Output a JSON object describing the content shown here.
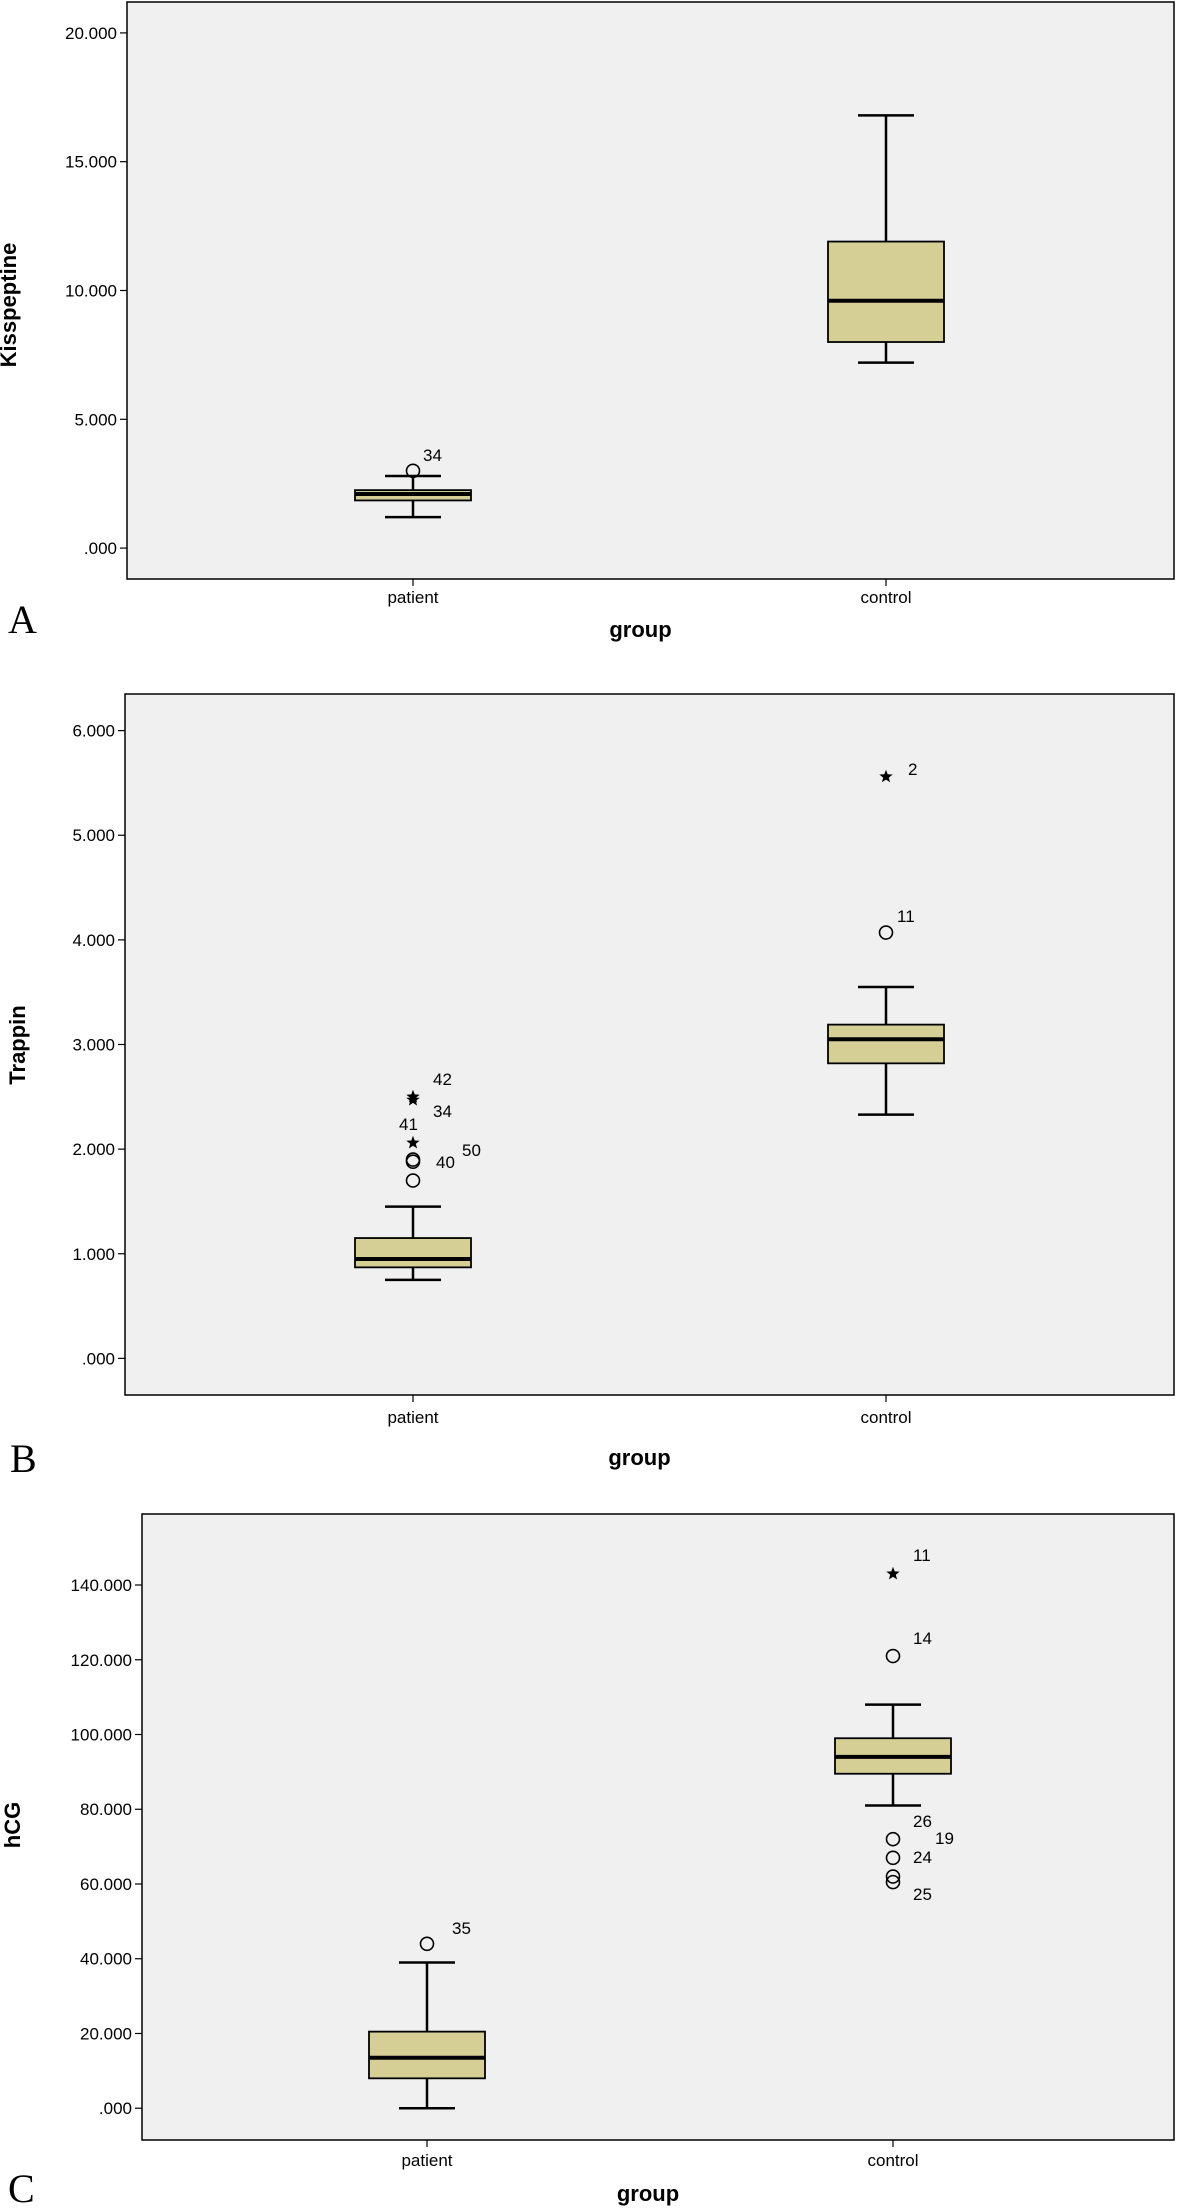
{
  "chart_data": [
    {
      "type": "box",
      "panel_label": "A",
      "xlabel": "group",
      "ylabel": "Kisspeptine",
      "ylim": [
        -1.2,
        21.2
      ],
      "yticks": [
        {
          "value": 0,
          "label": ".000"
        },
        {
          "value": 5,
          "label": "5.000"
        },
        {
          "value": 10,
          "label": "10.000"
        },
        {
          "value": 15,
          "label": "15.000"
        },
        {
          "value": 20,
          "label": "20.000"
        }
      ],
      "grid": false,
      "colors": {
        "box_fill": "#d5cf96",
        "plot_bg": "#f0f0f0"
      },
      "categories": [
        "patient",
        "control"
      ],
      "boxes": [
        {
          "category": "patient",
          "whisker_low": 1.2,
          "q1": 1.85,
          "median": 2.1,
          "q3": 2.25,
          "whisker_high": 2.8,
          "outliers": [
            {
              "value": 3.0,
              "marker": "circle",
              "label": "34"
            }
          ]
        },
        {
          "category": "control",
          "whisker_low": 7.2,
          "q1": 8.0,
          "median": 9.6,
          "q3": 11.9,
          "whisker_high": 16.8,
          "outliers": []
        }
      ]
    },
    {
      "type": "box",
      "panel_label": "B",
      "xlabel": "group",
      "ylabel": "Trappin",
      "ylim": [
        -0.35,
        6.35
      ],
      "yticks": [
        {
          "value": 0,
          "label": ".000"
        },
        {
          "value": 1,
          "label": "1.000"
        },
        {
          "value": 2,
          "label": "2.000"
        },
        {
          "value": 3,
          "label": "3.000"
        },
        {
          "value": 4,
          "label": "4.000"
        },
        {
          "value": 5,
          "label": "5.000"
        },
        {
          "value": 6,
          "label": "6.000"
        }
      ],
      "grid": false,
      "colors": {
        "box_fill": "#d5cf96",
        "plot_bg": "#f0f0f0"
      },
      "categories": [
        "patient",
        "control"
      ],
      "boxes": [
        {
          "category": "patient",
          "whisker_low": 0.75,
          "q1": 0.87,
          "median": 0.95,
          "q3": 1.15,
          "whisker_high": 1.45,
          "outliers": [
            {
              "value": 2.5,
              "marker": "star",
              "label": "42"
            },
            {
              "value": 2.47,
              "marker": "star",
              "label": "34"
            },
            {
              "value": 2.06,
              "marker": "star",
              "label": "41"
            },
            {
              "value": 1.9,
              "marker": "circle",
              "label": "50"
            },
            {
              "value": 1.88,
              "marker": "circle",
              "label": "40"
            },
            {
              "value": 1.7,
              "marker": "circle",
              "label": ""
            }
          ]
        },
        {
          "category": "control",
          "whisker_low": 2.33,
          "q1": 2.82,
          "median": 3.05,
          "q3": 3.19,
          "whisker_high": 3.55,
          "outliers": [
            {
              "value": 5.56,
              "marker": "star",
              "label": "2"
            },
            {
              "value": 4.07,
              "marker": "circle",
              "label": "11"
            }
          ]
        }
      ]
    },
    {
      "type": "box",
      "panel_label": "C",
      "xlabel": "group",
      "ylabel": "hCG",
      "ylim": [
        -8.5,
        159
      ],
      "yticks": [
        {
          "value": 0,
          "label": ".000"
        },
        {
          "value": 20,
          "label": "20.000"
        },
        {
          "value": 40,
          "label": "40.000"
        },
        {
          "value": 60,
          "label": "60.000"
        },
        {
          "value": 80,
          "label": "80.000"
        },
        {
          "value": 100,
          "label": "100.000"
        },
        {
          "value": 120,
          "label": "120.000"
        },
        {
          "value": 140,
          "label": "140.000"
        }
      ],
      "grid": false,
      "colors": {
        "box_fill": "#d5cf96",
        "plot_bg": "#f0f0f0"
      },
      "categories": [
        "patient",
        "control"
      ],
      "boxes": [
        {
          "category": "patient",
          "whisker_low": 0,
          "q1": 8,
          "median": 13.5,
          "q3": 20.5,
          "whisker_high": 39,
          "outliers": [
            {
              "value": 44,
              "marker": "circle",
              "label": "35"
            }
          ]
        },
        {
          "category": "control",
          "whisker_low": 81,
          "q1": 89.5,
          "median": 94,
          "q3": 99,
          "whisker_high": 108,
          "outliers": [
            {
              "value": 143,
              "marker": "star",
              "label": "11"
            },
            {
              "value": 121,
              "marker": "circle",
              "label": "14"
            },
            {
              "value": 72,
              "marker": "circle",
              "label": "26"
            },
            {
              "value": 67,
              "marker": "circle",
              "label": "19"
            },
            {
              "value": 62,
              "marker": "circle",
              "label": "24"
            },
            {
              "value": 60.5,
              "marker": "circle",
              "label": "25"
            }
          ]
        }
      ]
    }
  ]
}
